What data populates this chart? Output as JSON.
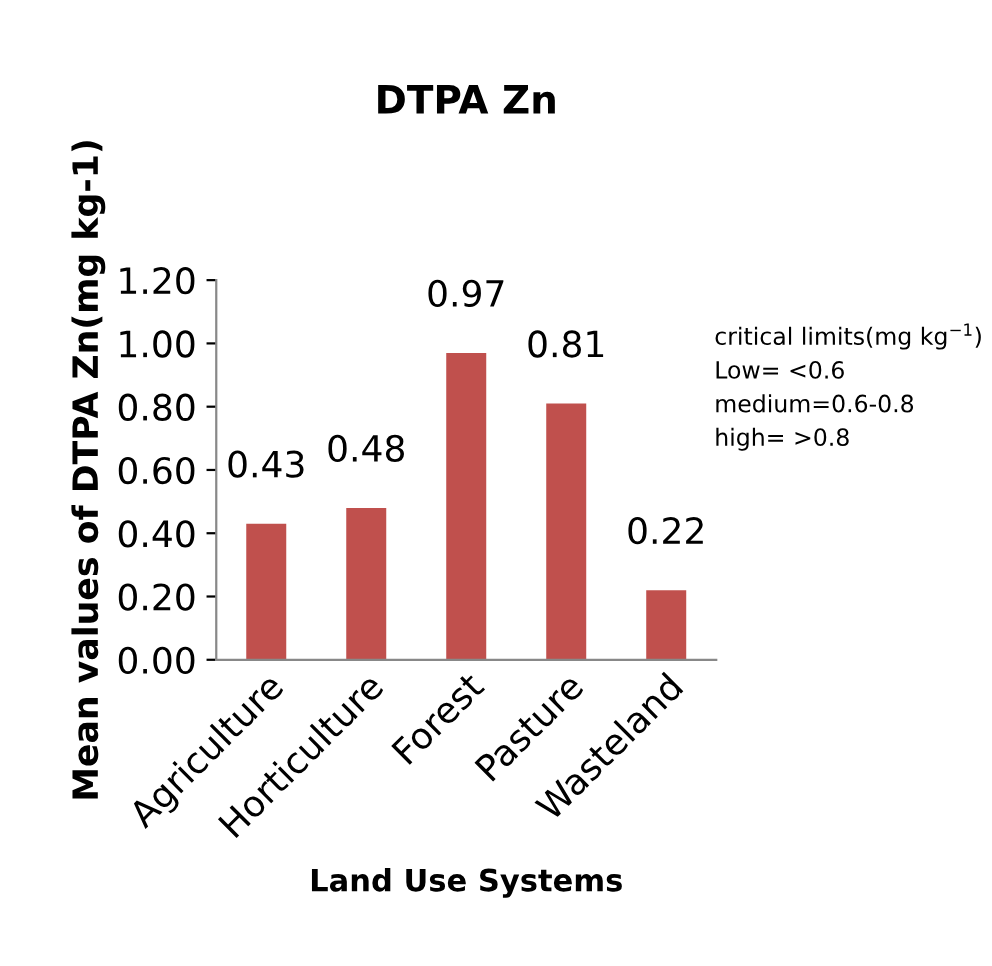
{
  "chart_data": {
    "type": "bar",
    "title": "DTPA Zn",
    "xlabel": "Land Use Systems",
    "ylabel": "Mean values of DTPA Zn(mg kg-1)",
    "categories": [
      "Agriculture",
      "Horticulture",
      "Forest",
      "Pasture",
      "Wasteland"
    ],
    "values": [
      0.43,
      0.48,
      0.97,
      0.81,
      0.22
    ],
    "color": "#c0504d",
    "data_labels": true,
    "ylim": [
      0,
      1.2
    ],
    "yticks": [
      {
        "value": 0,
        "label": "0.00"
      },
      {
        "value": 0.2,
        "label": "0.20"
      },
      {
        "value": 0.4,
        "label": "0.40"
      },
      {
        "value": 0.6,
        "label": "0.60"
      },
      {
        "value": 0.8,
        "label": "0.80"
      },
      {
        "value": 1.0,
        "label": "1.00"
      },
      {
        "value": 1.2,
        "label": "1.20"
      }
    ],
    "annotations": [
      "critical limits(mg kg$^{−1}$)\nLow= <0.6\nmedium=0.6-0.8\nhigh= >0.8"
    ],
    "grid": false,
    "legend": false
  }
}
